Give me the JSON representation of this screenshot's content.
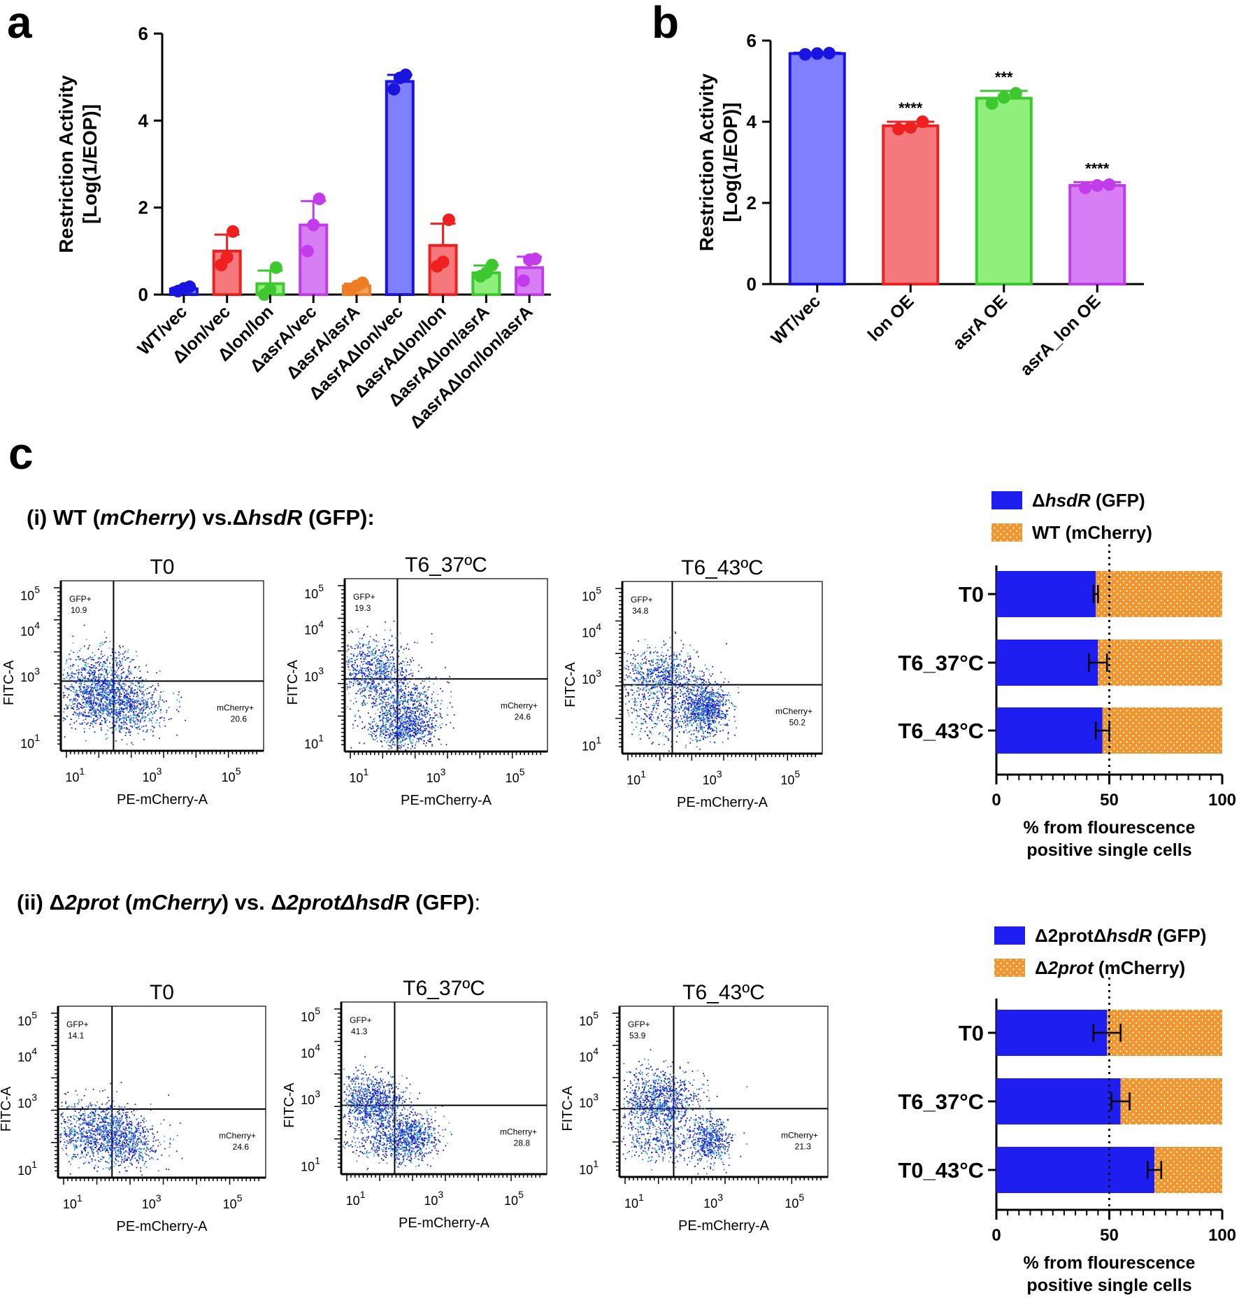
{
  "panel_labels": {
    "a": "a",
    "b": "b",
    "c": "c"
  },
  "chart_data": [
    {
      "id": "panel-a",
      "type": "bar",
      "ylabel_line1": "Restriction Activity",
      "ylabel_line2": "[Log(1/EOP)]",
      "ylim": [
        0,
        6
      ],
      "yticks": [
        0,
        2,
        4,
        6
      ],
      "categories": [
        "WT/vec",
        "Δlon/vec",
        "Δlon/lon",
        "ΔasrA/vec",
        "ΔasrA/asrA",
        "ΔasrAΔlon/vec",
        "ΔasrAΔlon/lon",
        "ΔasrAΔlon/asrA",
        "ΔasrAΔlon/lon/asrA"
      ],
      "values": [
        0.13,
        1.0,
        0.25,
        1.6,
        0.2,
        4.9,
        1.13,
        0.5,
        0.62
      ],
      "errors": [
        0.03,
        0.38,
        0.3,
        0.55,
        0.05,
        0.15,
        0.5,
        0.17,
        0.25
      ],
      "points": [
        [
          0.08,
          0.14,
          0.18
        ],
        [
          0.68,
          0.86,
          1.45
        ],
        [
          0.0,
          0.12,
          0.62
        ],
        [
          1.0,
          1.6,
          2.2
        ],
        [
          0.13,
          0.2,
          0.27
        ],
        [
          4.72,
          4.98,
          5.05
        ],
        [
          0.65,
          0.75,
          1.72
        ],
        [
          0.42,
          0.5,
          0.68
        ],
        [
          0.32,
          0.8,
          0.82
        ]
      ],
      "fill_colors": [
        "#8080ff",
        "#f4787c",
        "#8ef07a",
        "#d77ef4",
        "#f3a155",
        "#8080ff",
        "#f4787c",
        "#8ef07a",
        "#d77ef4"
      ],
      "edge_colors": [
        "#1a14e0",
        "#ee2020",
        "#3cc82e",
        "#c23cec",
        "#ee7d22",
        "#1a14e0",
        "#ee2020",
        "#3cc82e",
        "#c23cec"
      ]
    },
    {
      "id": "panel-b",
      "type": "bar",
      "ylabel_line1": "Restriction Activity",
      "ylabel_line2": "[Log(1/EOP)]",
      "ylim": [
        0,
        6
      ],
      "yticks": [
        0,
        2,
        4,
        6
      ],
      "categories": [
        "WT/vec",
        "lon OE",
        "asrA OE",
        "asrA_lon OE"
      ],
      "values": [
        5.68,
        3.9,
        4.58,
        2.43
      ],
      "errors": [
        0.02,
        0.1,
        0.18,
        0.08
      ],
      "points": [
        [
          5.66,
          5.68,
          5.69
        ],
        [
          3.82,
          3.86,
          4.0
        ],
        [
          4.45,
          4.6,
          4.7
        ],
        [
          2.37,
          2.43,
          2.45
        ]
      ],
      "significance": [
        "",
        "****",
        "***",
        "****"
      ],
      "fill_colors": [
        "#8080ff",
        "#f4787c",
        "#8ef07a",
        "#d77ef4"
      ],
      "edge_colors": [
        "#1a14e0",
        "#ee2020",
        "#3cc82e",
        "#c23cec"
      ]
    },
    {
      "id": "flow-i",
      "type": "scatter",
      "row_title": {
        "p1": "(i) WT (",
        "p2": "mCherry",
        "p3": ") vs.Δ",
        "p4": "hsdR",
        "p5": " (GFP):"
      },
      "xlabel": "PE-mCherry-A",
      "ylabel": "FITC-A",
      "plots": [
        {
          "title": "T0",
          "gfp_label": "GFP+",
          "gfp_value": "10.9",
          "mch_label": "mCherry+",
          "mch_value": "20.6"
        },
        {
          "title": "T6_37ºC",
          "gfp_label": "GFP+",
          "gfp_value": "19.3",
          "mch_label": "mCherry+",
          "mch_value": "24.6"
        },
        {
          "title": "T6_43ºC",
          "gfp_label": "GFP+",
          "gfp_value": "34.8",
          "mch_label": "mCherry+",
          "mch_value": "50.2"
        }
      ]
    },
    {
      "id": "stack-i",
      "type": "bar",
      "orientation": "horizontal-stacked",
      "legend": [
        {
          "p1": "Δ",
          "p2": "hsdR",
          "p3": " (GFP)"
        },
        {
          "p1": "WT (mCherry)",
          "p2": "",
          "p3": ""
        }
      ],
      "categories": [
        "T0",
        "T6_37°C",
        "T6_43°C"
      ],
      "series": [
        {
          "name": "ΔhsdR (GFP)",
          "values": [
            44,
            45,
            47
          ]
        },
        {
          "name": "WT (mCherry)",
          "values": [
            56,
            55,
            53
          ]
        }
      ],
      "errors": [
        1,
        4,
        3
      ],
      "xlim": [
        0,
        100
      ],
      "xticks": [
        0,
        50,
        100
      ],
      "xlabel_line1": "% from flourescence",
      "xlabel_line2": "positive single cells",
      "colors": {
        "gfp": "#1e1ef0",
        "mcherry": "#f0962e"
      }
    },
    {
      "id": "flow-ii",
      "type": "scatter",
      "row_title": {
        "p1": "(ii) Δ",
        "p2": "2prot",
        "p3": " (",
        "p4": "mCherry",
        "p5": ") vs. Δ",
        "p6": "2protΔhsdR",
        "p7": " (GFP)",
        "p8": ":"
      },
      "xlabel": "PE-mCherry-A",
      "ylabel": "FITC-A",
      "plots": [
        {
          "title": "T0",
          "gfp_label": "GFP+",
          "gfp_value": "14.1",
          "mch_label": "mCherry+",
          "mch_value": "24.6"
        },
        {
          "title": "T6_37ºC",
          "gfp_label": "GFP+",
          "gfp_value": "41.3",
          "mch_label": "mCherry+",
          "mch_value": "28.8"
        },
        {
          "title": "T6_43ºC",
          "gfp_label": "GFP+",
          "gfp_value": "53.9",
          "mch_label": "mCherry+",
          "mch_value": "21.3"
        }
      ]
    },
    {
      "id": "stack-ii",
      "type": "bar",
      "orientation": "horizontal-stacked",
      "legend": [
        {
          "p1": "Δ2protΔ",
          "p2": "hsdR",
          "p3": " (GFP)"
        },
        {
          "p1": "Δ",
          "p2": "2prot",
          "p3": " (mCherry)"
        }
      ],
      "categories": [
        "T0",
        "T6_37°C",
        "T0_43°C"
      ],
      "series": [
        {
          "name": "Δ2protΔhsdR (GFP)",
          "values": [
            49,
            55,
            70
          ]
        },
        {
          "name": "Δ2prot (mCherry)",
          "values": [
            51,
            45,
            30
          ]
        }
      ],
      "errors": [
        6,
        4,
        3
      ],
      "xlim": [
        0,
        100
      ],
      "xticks": [
        0,
        50,
        100
      ],
      "xlabel_line1": "% from flourescence",
      "xlabel_line2": "positive single cells",
      "colors": {
        "gfp": "#1e1ef0",
        "mcherry": "#f0962e"
      }
    }
  ]
}
